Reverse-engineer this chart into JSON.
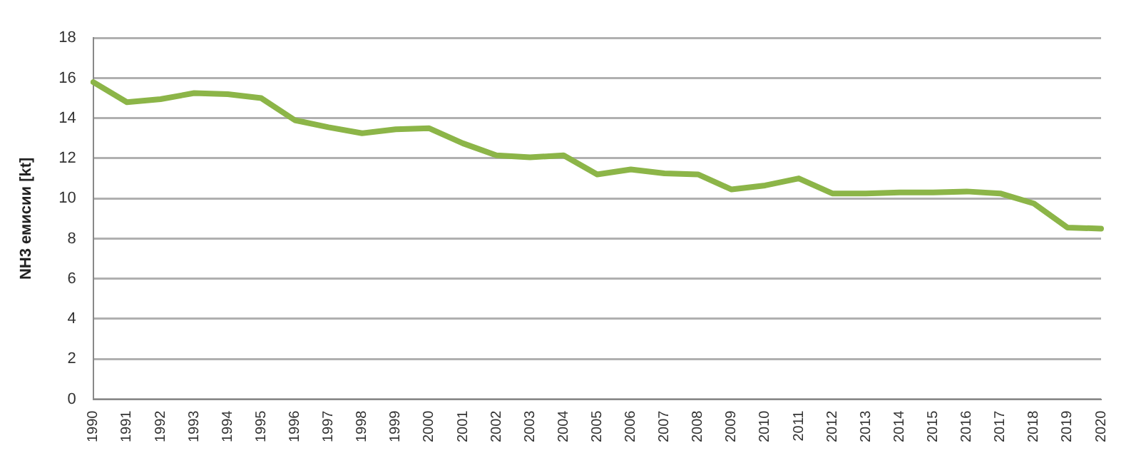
{
  "chart_data": {
    "type": "line",
    "ylabel": "NH3 емисии [kt]",
    "categories": [
      "1990",
      "1991",
      "1992",
      "1993",
      "1994",
      "1995",
      "1996",
      "1997",
      "1998",
      "1999",
      "2000",
      "2001",
      "2002",
      "2003",
      "2004",
      "2005",
      "2006",
      "2007",
      "2008",
      "2009",
      "2010",
      "2011",
      "2012",
      "2013",
      "2014",
      "2015",
      "2016",
      "2017",
      "2018",
      "2019",
      "2020"
    ],
    "series": [
      {
        "color": "#8cb548",
        "values": [
          15.8,
          14.8,
          14.95,
          15.25,
          15.2,
          15.0,
          13.9,
          13.55,
          13.25,
          13.45,
          13.5,
          12.75,
          12.15,
          12.05,
          12.15,
          11.2,
          11.45,
          11.25,
          11.2,
          10.45,
          10.65,
          11.0,
          10.25,
          10.25,
          10.3,
          10.3,
          10.35,
          10.25,
          9.75,
          8.55,
          8.5
        ]
      }
    ],
    "ylim": [
      0,
      18
    ],
    "yticks": [
      0,
      2,
      4,
      6,
      8,
      10,
      12,
      14,
      16,
      18
    ],
    "grid": "y",
    "legend": false,
    "marker": "none",
    "line_style": "solid"
  }
}
